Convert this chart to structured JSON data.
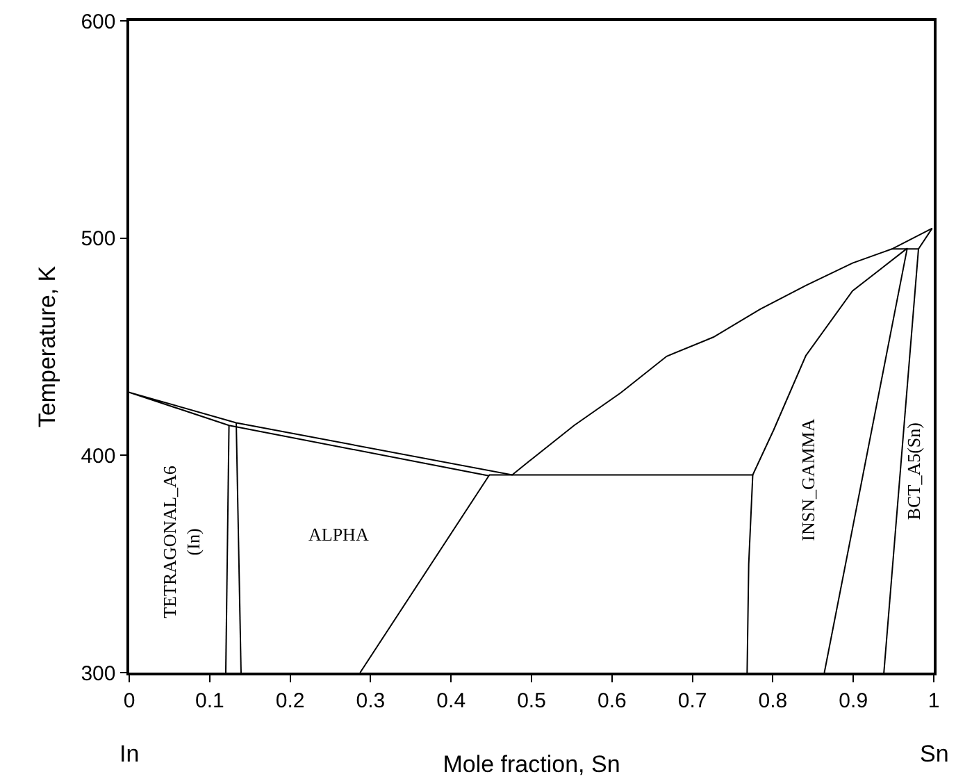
{
  "chart_data": {
    "type": "line",
    "xlabel": "Mole fraction, Sn",
    "ylabel": "Temperature, K",
    "xlim": [
      0,
      1
    ],
    "ylim": [
      300,
      600
    ],
    "xticks": [
      0,
      0.1,
      0.2,
      0.3,
      0.4,
      0.5,
      0.6,
      0.7,
      0.8,
      0.9,
      1
    ],
    "yticks": [
      300,
      400,
      500,
      600
    ],
    "marker": "none",
    "line_style": "solid",
    "series": [
      {
        "color": "#000000",
        "x": [
          0.287,
          0.447,
          0.124,
          0,
          0.133,
          0.476,
          0.496,
          0.553,
          0.611,
          0.668,
          0.726,
          0.784,
          0.841,
          0.899,
          0.948,
          0.998,
          null,
          0.12,
          0.124,
          null,
          0.139,
          0.133,
          null,
          0.447,
          0.775,
          0.801,
          0.841,
          0.899,
          0.967,
          0.864,
          null,
          0.775,
          0.77,
          0.768,
          null,
          0.948,
          0.981,
          0.998,
          null,
          0.981,
          0.938
        ],
        "values": [
          300,
          390.6,
          413.8,
          429,
          415,
          391,
          397,
          413.8,
          428.8,
          445.6,
          454.4,
          467.2,
          478.2,
          488.5,
          495,
          504.5,
          null,
          300,
          413.8,
          null,
          300,
          415,
          null,
          391,
          391,
          411.7,
          445.9,
          475.7,
          495.3,
          300,
          null,
          391,
          350,
          300,
          null,
          495,
          495,
          504.5,
          null,
          495,
          300
        ]
      }
    ],
    "annotations": [
      "TETRAGONAL_A6\n(In)",
      "ALPHA",
      "INSN_GAMMA",
      "BCT_A5(Sn)",
      "In",
      "Sn"
    ]
  }
}
